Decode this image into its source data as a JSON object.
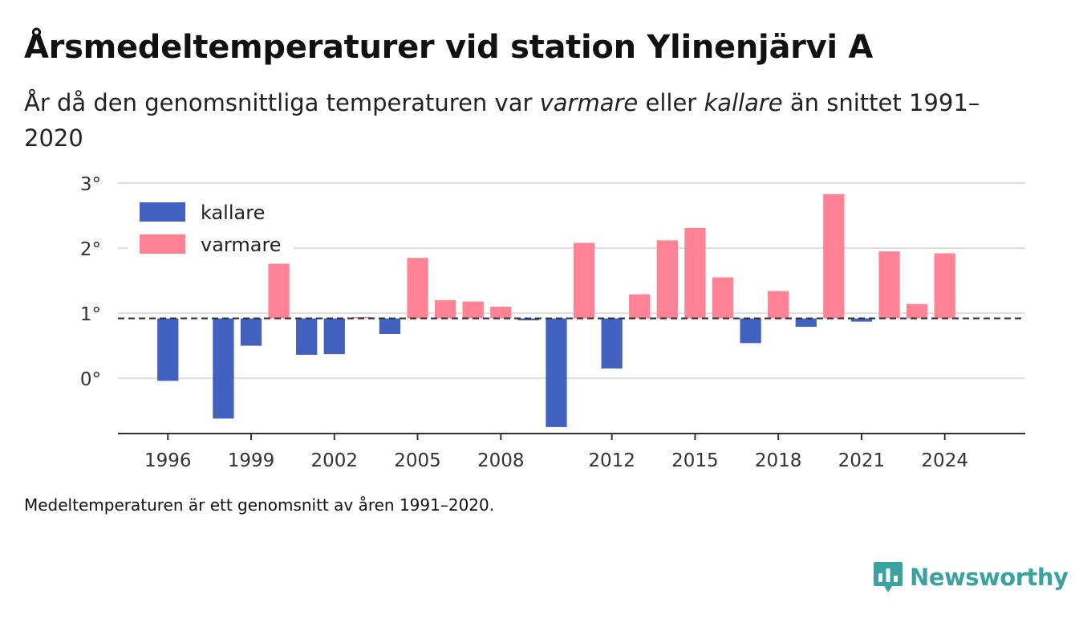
{
  "title": "Årsmedeltemperaturer vid station Ylinenjärvi A",
  "subtitle": {
    "before": "År då den genomsnittliga temperaturen var ",
    "warm_word": "varmare",
    "middle": " eller ",
    "cold_word": "kallare",
    "after": " än snittet 1991–2020"
  },
  "footnote": "Medeltemperaturen är ett genomsnitt av åren 1991–2020.",
  "brand": {
    "name": "Newsworthy",
    "color": "#3aa3a0",
    "icon": "newsworthy-logo-icon"
  },
  "chart_data": {
    "type": "bar",
    "baseline": 0.92,
    "ylim": [
      -0.85,
      3.0
    ],
    "y_ticks": [
      0,
      1,
      2,
      3
    ],
    "y_tick_labels": [
      "0°",
      "1°",
      "2°",
      "3°"
    ],
    "x_ticks": [
      1996,
      1999,
      2002,
      2005,
      2008,
      2012,
      2015,
      2018,
      2021,
      2024
    ],
    "xlim": [
      1994.2,
      2026.9
    ],
    "colors": {
      "kallare": "#4262c0",
      "varmare": "#ff8295"
    },
    "legend": [
      {
        "key": "kallare",
        "label": "kallare"
      },
      {
        "key": "varmare",
        "label": "varmare"
      }
    ],
    "legend_position": "top-left",
    "grid": true,
    "years": [
      1996,
      1997,
      1998,
      1999,
      2000,
      2001,
      2002,
      2003,
      2004,
      2005,
      2006,
      2007,
      2008,
      2009,
      2010,
      2011,
      2012,
      2013,
      2014,
      2015,
      2016,
      2017,
      2018,
      2019,
      2020,
      2021,
      2022,
      2023,
      2024
    ],
    "values": [
      -0.04,
      null,
      -0.62,
      0.5,
      1.76,
      0.36,
      0.37,
      0.94,
      0.68,
      1.85,
      1.2,
      1.18,
      1.1,
      0.89,
      -0.75,
      2.08,
      0.15,
      1.29,
      2.12,
      2.31,
      1.55,
      0.54,
      1.34,
      0.79,
      2.83,
      0.87,
      1.95,
      1.14,
      1.92
    ]
  }
}
